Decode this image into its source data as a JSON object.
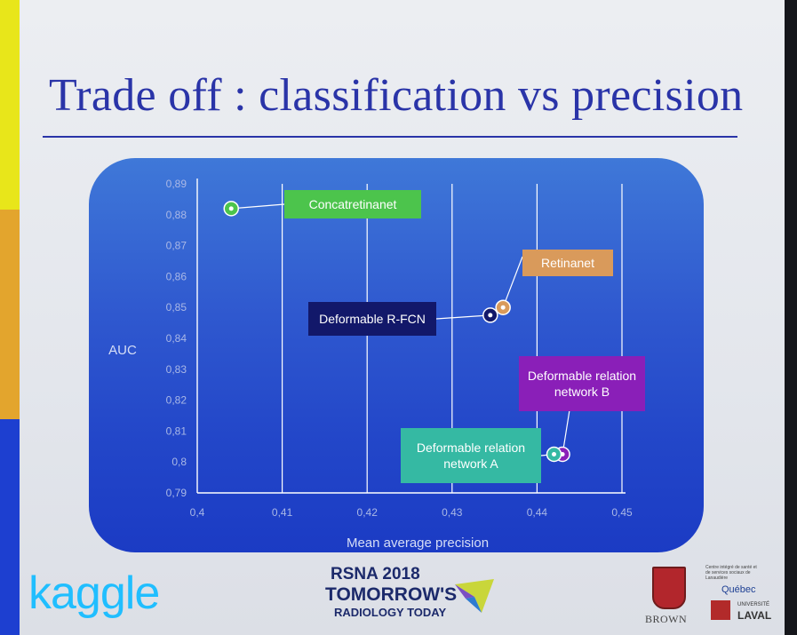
{
  "slide": {
    "title": "Trade off : classification vs precision"
  },
  "chart_data": {
    "type": "scatter",
    "xlabel": "Mean average precision",
    "ylabel": "AUC",
    "xlim": [
      0.4,
      0.45
    ],
    "ylim": [
      0.79,
      0.89
    ],
    "x_ticks": [
      "0,4",
      "0,41",
      "0,42",
      "0,43",
      "0,44",
      "0,45"
    ],
    "y_ticks": [
      "0,79",
      "0,8",
      "0,81",
      "0,82",
      "0,83",
      "0,84",
      "0,85",
      "0,86",
      "0,87",
      "0,88",
      "0,89"
    ],
    "grid": "vertical",
    "points": [
      {
        "label": "Concatretinanet",
        "x": 0.404,
        "y": 0.882,
        "color": "#4cc44c",
        "text_color": "#ffffff"
      },
      {
        "label": "Retinanet",
        "x": 0.436,
        "y": 0.85,
        "color": "#d99a5b",
        "text_color": "#ffffff"
      },
      {
        "label": "Deformable R-FCN",
        "x": 0.4345,
        "y": 0.8475,
        "color": "#12186a",
        "text_color": "#ffffff"
      },
      {
        "label": "Deformable relation network B",
        "label_lines": [
          "Deformable relation",
          "network B"
        ],
        "x": 0.443,
        "y": 0.8025,
        "color": "#8a1fb8",
        "text_color": "#ffffff"
      },
      {
        "label": "Deformable relation network A",
        "label_lines": [
          "Deformable relation",
          "network A"
        ],
        "x": 0.442,
        "y": 0.8025,
        "color": "#35b9a3",
        "text_color": "#ffffff"
      }
    ]
  },
  "footer": {
    "kaggle": "kaggle",
    "rsna_line1": "RSNA 2018",
    "rsna_line2": "TOMORROW'S",
    "rsna_line3": "RADIOLOGY TODAY",
    "brown": "BROWN",
    "quebec_small": "Centre intégré de santé et de services sociaux de Lanaudière",
    "quebec": "Québec",
    "laval_small": "UNIVERSITÉ",
    "laval": "LAVAL"
  }
}
